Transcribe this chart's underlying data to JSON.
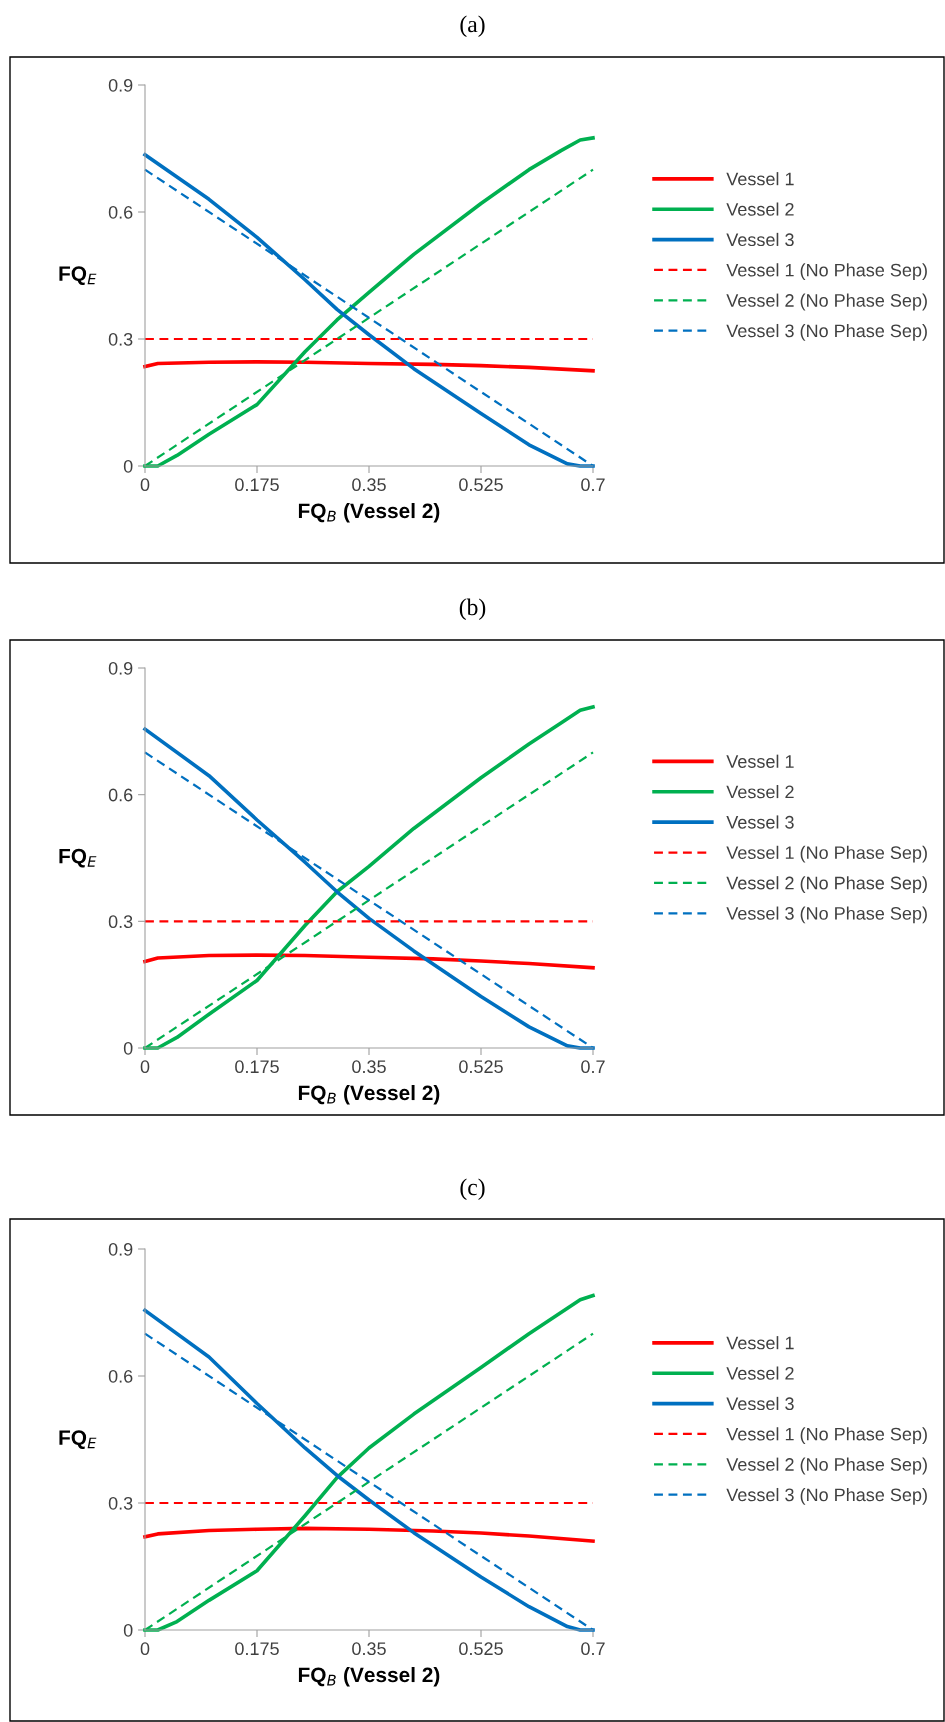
{
  "chart_data": [
    {
      "type": "line",
      "title": "(a)",
      "xlabel": "FQ$_{B}$ (Vessel 2)",
      "ylabel": "FQ$_{E}$",
      "xlim": [
        0,
        0.7
      ],
      "ylim": [
        0,
        0.9
      ],
      "xticks": [
        0,
        0.175,
        0.35,
        0.525,
        0.7
      ],
      "yticks": [
        0,
        0.3,
        0.6,
        0.9
      ],
      "grid": false,
      "legend": "right",
      "series": [
        {
          "name": "Vessel 1",
          "color": "#ff0000",
          "line_style": "solid",
          "x": [
            0,
            0.02,
            0.1,
            0.175,
            0.25,
            0.35,
            0.45,
            0.525,
            0.6,
            0.7
          ],
          "values": [
            0.235,
            0.242,
            0.245,
            0.246,
            0.245,
            0.242,
            0.24,
            0.237,
            0.233,
            0.225
          ]
        },
        {
          "name": "Vessel 2",
          "color": "#00b050",
          "line_style": "solid",
          "x": [
            0,
            0.02,
            0.05,
            0.1,
            0.175,
            0.25,
            0.3,
            0.35,
            0.42,
            0.525,
            0.6,
            0.65,
            0.68,
            0.7
          ],
          "values": [
            0,
            0,
            0.025,
            0.075,
            0.145,
            0.27,
            0.345,
            0.41,
            0.5,
            0.62,
            0.7,
            0.745,
            0.77,
            0.775
          ]
        },
        {
          "name": "Vessel 3",
          "color": "#0070c0",
          "line_style": "solid",
          "x": [
            0,
            0.1,
            0.175,
            0.25,
            0.3,
            0.35,
            0.42,
            0.525,
            0.6,
            0.66,
            0.68,
            0.7
          ],
          "values": [
            0.735,
            0.63,
            0.54,
            0.44,
            0.37,
            0.31,
            0.23,
            0.124,
            0.05,
            0.005,
            0,
            0
          ]
        },
        {
          "name": "Vessel 1 (No Phase Sep)",
          "color": "#ff0000",
          "line_style": "dashed",
          "x": [
            0,
            0.7
          ],
          "values": [
            0.3,
            0.3
          ]
        },
        {
          "name": "Vessel 2 (No Phase Sep)",
          "color": "#00b050",
          "line_style": "dashed",
          "x": [
            0,
            0.7
          ],
          "values": [
            0,
            0.7
          ]
        },
        {
          "name": "Vessel 3 (No Phase Sep)",
          "color": "#0070c0",
          "line_style": "dashed",
          "x": [
            0,
            0.7
          ],
          "values": [
            0.7,
            0
          ]
        }
      ]
    },
    {
      "type": "line",
      "title": "(b)",
      "xlabel": "FQ$_{B}$ (Vessel 2)",
      "ylabel": "FQ$_{E}$",
      "xlim": [
        0,
        0.7
      ],
      "ylim": [
        0,
        0.9
      ],
      "xticks": [
        0,
        0.175,
        0.35,
        0.525,
        0.7
      ],
      "yticks": [
        0,
        0.3,
        0.6,
        0.9
      ],
      "grid": false,
      "legend": "right",
      "series": [
        {
          "name": "Vessel 1",
          "color": "#ff0000",
          "line_style": "solid",
          "x": [
            0,
            0.02,
            0.1,
            0.175,
            0.25,
            0.35,
            0.45,
            0.525,
            0.6,
            0.7
          ],
          "values": [
            0.205,
            0.213,
            0.219,
            0.22,
            0.219,
            0.215,
            0.211,
            0.206,
            0.2,
            0.19
          ]
        },
        {
          "name": "Vessel 2",
          "color": "#00b050",
          "line_style": "solid",
          "x": [
            0,
            0.02,
            0.05,
            0.1,
            0.175,
            0.25,
            0.3,
            0.35,
            0.42,
            0.525,
            0.6,
            0.65,
            0.68,
            0.7
          ],
          "values": [
            0,
            0,
            0.025,
            0.08,
            0.16,
            0.29,
            0.37,
            0.43,
            0.52,
            0.64,
            0.72,
            0.77,
            0.8,
            0.808
          ]
        },
        {
          "name": "Vessel 3",
          "color": "#0070c0",
          "line_style": "solid",
          "x": [
            0,
            0.1,
            0.175,
            0.25,
            0.3,
            0.35,
            0.42,
            0.525,
            0.6,
            0.66,
            0.68,
            0.7
          ],
          "values": [
            0.755,
            0.645,
            0.54,
            0.44,
            0.37,
            0.307,
            0.23,
            0.122,
            0.05,
            0.005,
            0,
            0
          ]
        },
        {
          "name": "Vessel 1 (No Phase Sep)",
          "color": "#ff0000",
          "line_style": "dashed",
          "x": [
            0,
            0.7
          ],
          "values": [
            0.3,
            0.3
          ]
        },
        {
          "name": "Vessel 2 (No Phase Sep)",
          "color": "#00b050",
          "line_style": "dashed",
          "x": [
            0,
            0.7
          ],
          "values": [
            0,
            0.7
          ]
        },
        {
          "name": "Vessel 3 (No Phase Sep)",
          "color": "#0070c0",
          "line_style": "dashed",
          "x": [
            0,
            0.7
          ],
          "values": [
            0.7,
            0
          ]
        }
      ]
    },
    {
      "type": "line",
      "title": "(c)",
      "xlabel": "FQ$_{B}$ (Vessel 2)",
      "ylabel": "FQ$_{E}$",
      "xlim": [
        0,
        0.7
      ],
      "ylim": [
        0,
        0.9
      ],
      "xticks": [
        0,
        0.175,
        0.35,
        0.525,
        0.7
      ],
      "yticks": [
        0,
        0.3,
        0.6,
        0.9
      ],
      "grid": false,
      "legend": "right",
      "series": [
        {
          "name": "Vessel 1",
          "color": "#ff0000",
          "line_style": "solid",
          "x": [
            0,
            0.02,
            0.1,
            0.175,
            0.25,
            0.35,
            0.45,
            0.525,
            0.6,
            0.7
          ],
          "values": [
            0.22,
            0.227,
            0.235,
            0.238,
            0.24,
            0.238,
            0.234,
            0.229,
            0.222,
            0.21
          ]
        },
        {
          "name": "Vessel 2",
          "color": "#00b050",
          "line_style": "solid",
          "x": [
            0,
            0.02,
            0.05,
            0.1,
            0.175,
            0.25,
            0.3,
            0.35,
            0.42,
            0.525,
            0.6,
            0.65,
            0.68,
            0.7
          ],
          "values": [
            0,
            0,
            0.02,
            0.07,
            0.14,
            0.27,
            0.36,
            0.43,
            0.51,
            0.62,
            0.7,
            0.75,
            0.78,
            0.79
          ]
        },
        {
          "name": "Vessel 3",
          "color": "#0070c0",
          "line_style": "solid",
          "x": [
            0,
            0.1,
            0.175,
            0.25,
            0.3,
            0.35,
            0.42,
            0.525,
            0.6,
            0.66,
            0.68,
            0.7
          ],
          "values": [
            0.755,
            0.645,
            0.535,
            0.43,
            0.365,
            0.307,
            0.23,
            0.125,
            0.055,
            0.008,
            0,
            0
          ]
        },
        {
          "name": "Vessel 1 (No Phase Sep)",
          "color": "#ff0000",
          "line_style": "dashed",
          "x": [
            0,
            0.7
          ],
          "values": [
            0.3,
            0.3
          ]
        },
        {
          "name": "Vessel 2 (No Phase Sep)",
          "color": "#00b050",
          "line_style": "dashed",
          "x": [
            0,
            0.7
          ],
          "values": [
            0,
            0.7
          ]
        },
        {
          "name": "Vessel 3 (No Phase Sep)",
          "color": "#0070c0",
          "line_style": "dashed",
          "x": [
            0,
            0.7
          ],
          "values": [
            0.7,
            0
          ]
        }
      ]
    }
  ]
}
